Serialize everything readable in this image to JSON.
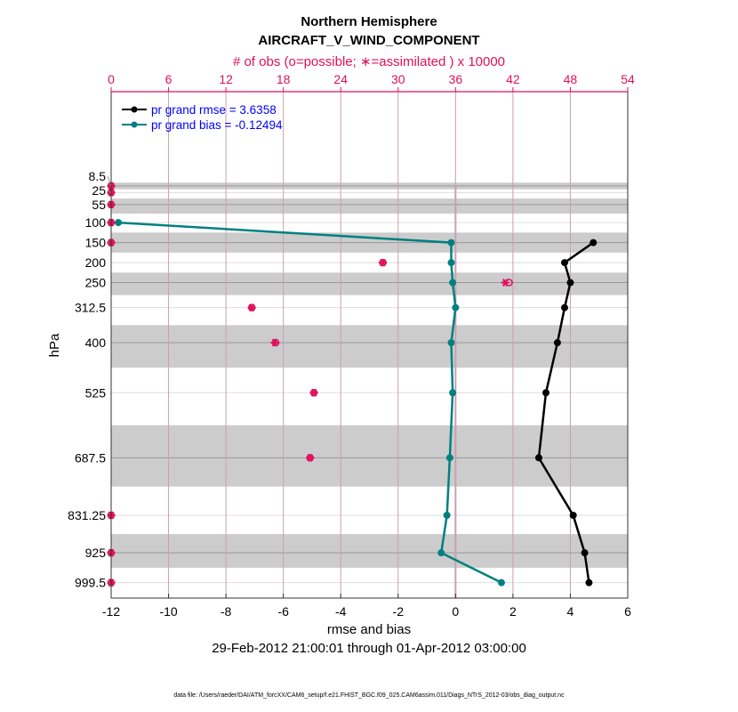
{
  "chart_data": {
    "type": "line",
    "title": "Northern Hemisphere",
    "subtitle": "AIRCRAFT_V_WIND_COMPONENT",
    "top_xlabel": "# of obs (o=possible; ∗=assimilated ) x 10000",
    "xlabel": "rmse and bias",
    "ylabel": "hPa",
    "date_range": "29-Feb-2012 21:00:01 through 01-Apr-2012 03:00:00",
    "footer": "data file: /Users/raeder/DAI/ATM_forcXX/CAM6_setup/f.e21.FHIST_BGC.f09_025.CAM6assim.011/Diags_NTrS_2012-03/obs_diag_output.nc",
    "xlim": [
      -12,
      6
    ],
    "xticks": [
      -12,
      -10,
      -8,
      -6,
      -4,
      -2,
      0,
      2,
      4,
      6
    ],
    "top_xlim": [
      0,
      54
    ],
    "top_xticks": [
      0,
      6,
      12,
      18,
      24,
      30,
      36,
      42,
      48,
      54
    ],
    "ylim": [
      -227,
      1038
    ],
    "levels": [
      8.5,
      25,
      55,
      100,
      150,
      200,
      250,
      312.5,
      400,
      525,
      687.5,
      831.25,
      925,
      999.5
    ],
    "level_labels": [
      "8.5",
      "25",
      "55",
      "100",
      "150",
      "200",
      "250",
      "312.5",
      "400",
      "525",
      "687.5",
      "831.25",
      "925",
      "999.5"
    ],
    "legend": {
      "placement": "top-left",
      "entries": [
        "pr grand rmse = 3.6358",
        "pr grand bias = -0.12494"
      ]
    },
    "series": [
      {
        "name": "rmse",
        "color": "#000000",
        "levels": [
          150,
          200,
          250,
          312.5,
          400,
          525,
          687.5,
          831.25,
          925,
          999.5
        ],
        "values": [
          4.8,
          3.8,
          4.0,
          3.8,
          3.55,
          3.15,
          2.9,
          4.1,
          4.5,
          4.65
        ]
      },
      {
        "name": "bias",
        "color": "#008080",
        "levels": [
          100,
          150,
          200,
          250,
          312.5,
          400,
          525,
          687.5,
          831.25,
          925,
          999.5
        ],
        "values": [
          -11.75,
          -0.15,
          -0.15,
          -0.1,
          0.0,
          -0.15,
          -0.1,
          -0.2,
          -0.3,
          -0.5,
          1.6
        ]
      },
      {
        "name": "obs possible",
        "color": "#e0105a",
        "marker": "o",
        "levels": [
          8.5,
          25,
          55,
          100,
          150,
          200,
          250,
          312.5,
          400,
          525,
          687.5,
          831.25,
          925,
          999.5
        ],
        "values": [
          0,
          0,
          0,
          0,
          0,
          28.4,
          41.6,
          14.7,
          17.2,
          21.2,
          20.8,
          0,
          0,
          0
        ]
      },
      {
        "name": "obs assimilated",
        "color": "#e0105a",
        "marker": "*",
        "levels": [
          8.5,
          25,
          55,
          100,
          150,
          200,
          250,
          312.5,
          400,
          525,
          687.5,
          831.25,
          925,
          999.5
        ],
        "values": [
          0,
          0,
          0,
          0,
          0,
          28.4,
          41.2,
          14.7,
          17.1,
          21.2,
          20.8,
          0,
          0,
          0
        ]
      }
    ],
    "grid": true
  }
}
